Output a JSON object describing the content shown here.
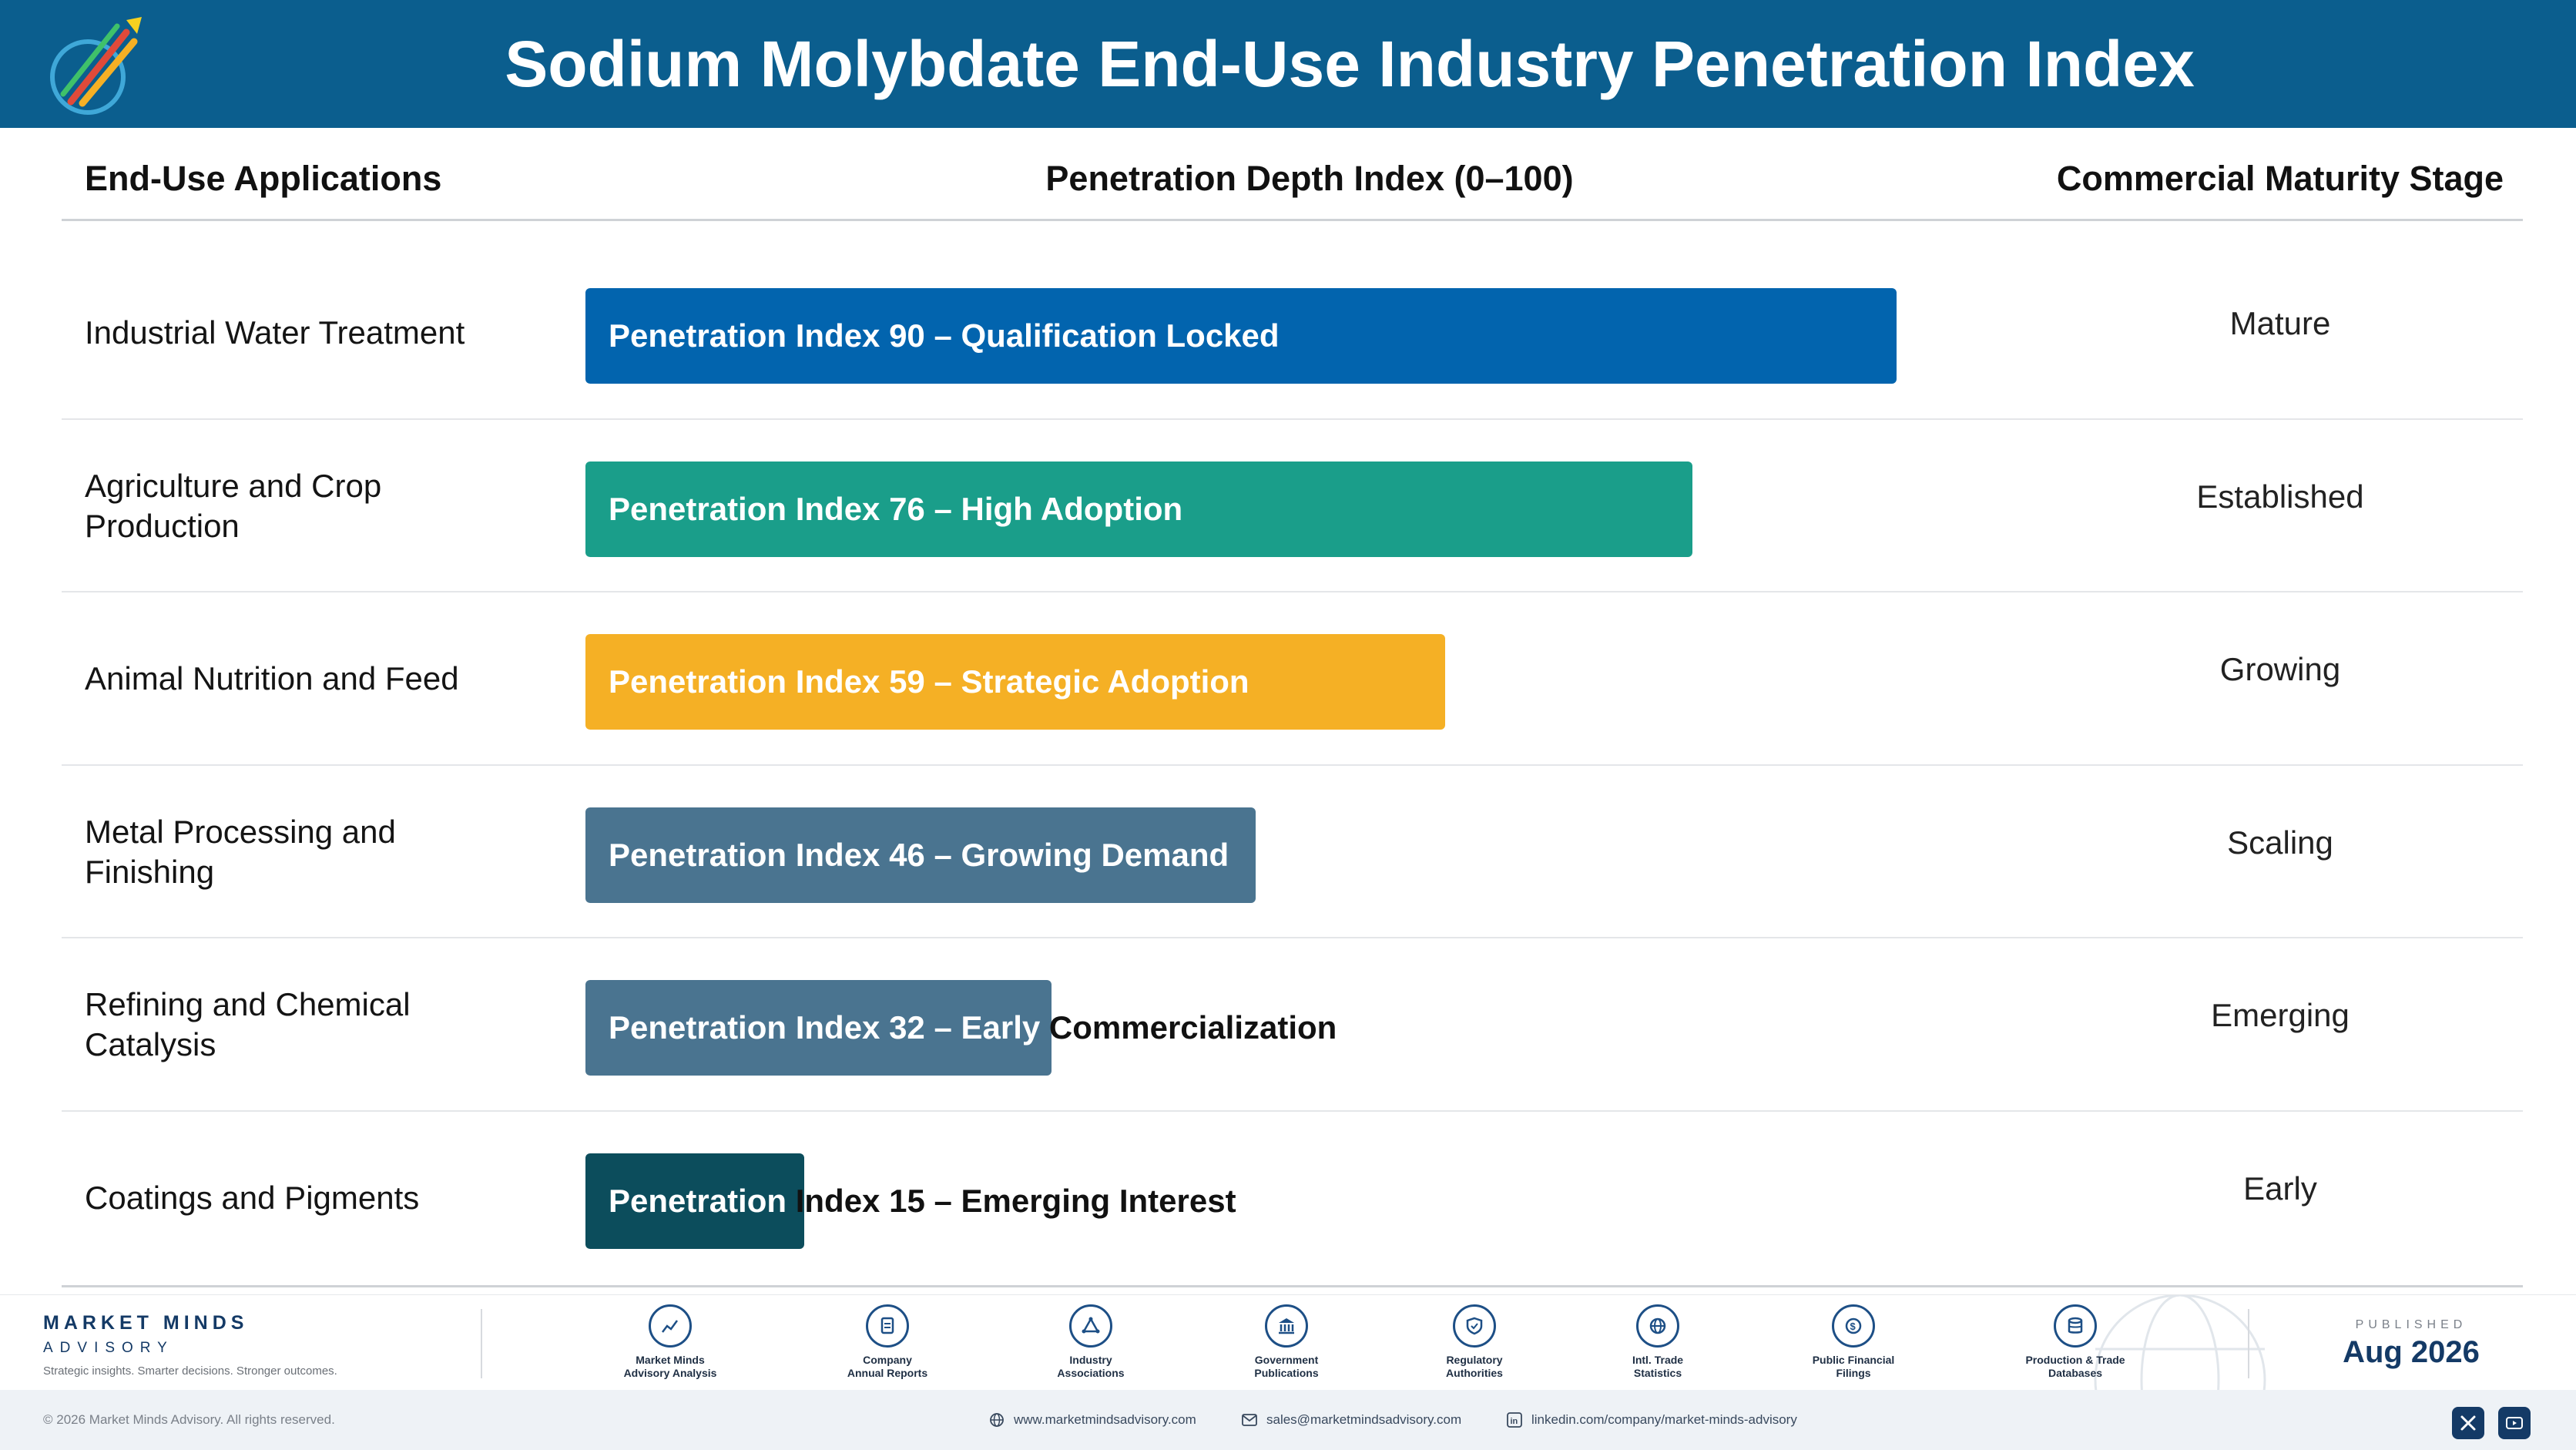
{
  "header": {
    "title": "Sodium Molybdate End-Use Industry Penetration Index",
    "logo_text": "Market Minds Advisory"
  },
  "columns": {
    "left": "End-Use Applications",
    "middle": "Penetration Depth Index (0–100)",
    "right": "Commercial Maturity Stage"
  },
  "chart_data": {
    "type": "bar",
    "orientation": "horizontal",
    "xlim": [
      0,
      100
    ],
    "categories": [
      "Industrial Water Treatment",
      "Agriculture and Crop Production",
      "Animal Nutrition and Feed",
      "Metal Processing and Finishing",
      "Refining and Chemical Catalysis",
      "Coatings and Pigments"
    ],
    "values": [
      90,
      76,
      59,
      46,
      32,
      15
    ],
    "bar_labels": [
      "Penetration Index 90 – Qualification Locked",
      "Penetration Index 76 – High Adoption",
      "Penetration Index 59 – Strategic Adoption",
      "Penetration Index 46 – Growing Demand",
      "Penetration Index 32 – Early Commercialization",
      "Penetration Index 15 – Emerging Interest"
    ],
    "stages": [
      "Mature",
      "Established",
      "Growing",
      "Scaling",
      "Emerging",
      "Early"
    ],
    "colors": [
      "#0264ae",
      "#1a9e8a",
      "#f5b025",
      "#4a7490",
      "#4a7490",
      "#0c4d5c"
    ]
  },
  "footer": {
    "brand_name": "MARKET MINDS",
    "brand_sub": "ADVISORY",
    "tagline": "Strategic insights. Smarter decisions. Stronger outcomes.",
    "sources": [
      {
        "icon": "chart-line-icon",
        "label_1": "Market Minds",
        "label_2": "Advisory Analysis"
      },
      {
        "icon": "document-icon",
        "label_1": "Company",
        "label_2": "Annual Reports"
      },
      {
        "icon": "network-icon",
        "label_1": "Industry",
        "label_2": "Associations"
      },
      {
        "icon": "government-icon",
        "label_1": "Government",
        "label_2": "Publications"
      },
      {
        "icon": "shield-icon",
        "label_1": "Regulatory",
        "label_2": "Authorities"
      },
      {
        "icon": "globe-icon",
        "label_1": "Intl. Trade",
        "label_2": "Statistics"
      },
      {
        "icon": "dollar-icon",
        "label_1": "Public Financial",
        "label_2": "Filings"
      },
      {
        "icon": "database-icon",
        "label_1": "Production & Trade",
        "label_2": "Databases"
      }
    ],
    "published_label": "PUBLISHED",
    "published_date": "Aug 2026",
    "copyright": "© 2026 Market Minds Advisory. All rights reserved.",
    "website": "www.marketmindsadvisory.com",
    "email": "sales@marketmindsadvisory.com",
    "linkedin": "linkedin.com/company/market-minds-advisory"
  }
}
